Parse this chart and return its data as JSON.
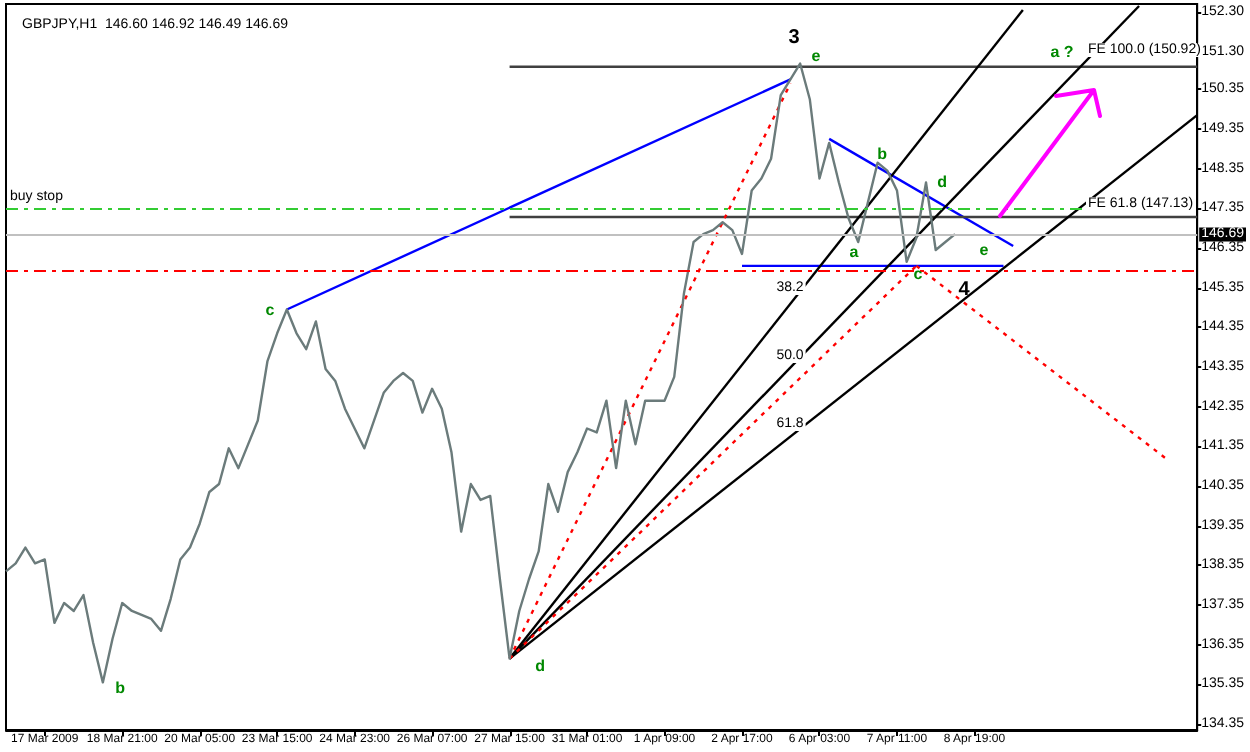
{
  "chart_data": {
    "type": "line",
    "title": "GBPJPY,H1  146.60 146.92 146.49 146.69",
    "marker": "none",
    "categories": [
      null,
      null,
      null,
      null,
      "17 Mar 2009",
      null,
      null,
      null,
      null,
      null,
      null,
      null,
      "18 Mar 21:00",
      null,
      null,
      null,
      null,
      null,
      null,
      null,
      "20 Mar 05:00",
      null,
      null,
      null,
      null,
      null,
      null,
      null,
      "23 Mar 15:00",
      null,
      null,
      null,
      null,
      null,
      null,
      null,
      "24 Mar 23:00",
      null,
      null,
      null,
      null,
      null,
      null,
      null,
      "26 Mar 07:00",
      null,
      null,
      null,
      null,
      null,
      null,
      null,
      "27 Mar 15:00",
      null,
      null,
      null,
      null,
      null,
      null,
      null,
      "31 Mar 01:00",
      null,
      null,
      null,
      null,
      null,
      null,
      null,
      "1 Apr 09:00",
      null,
      null,
      null,
      null,
      null,
      null,
      null,
      "2 Apr 17:00",
      null,
      null,
      null,
      null,
      null,
      null,
      null,
      "6 Apr 03:00",
      null,
      null,
      null,
      null,
      null,
      null,
      null,
      "7 Apr 11:00",
      null,
      null,
      null,
      null,
      null,
      null,
      null,
      "8 Apr 19:00",
      null,
      null,
      null,
      null,
      null,
      null,
      null,
      null,
      null,
      null,
      null,
      null,
      null,
      null,
      null,
      null,
      null,
      null,
      null,
      null,
      null,
      null,
      null
    ],
    "series": [
      {
        "color": "#6b7b7b",
        "values": [
          138.2,
          138.4,
          138.8,
          138.4,
          138.5,
          136.9,
          137.4,
          137.2,
          137.6,
          136.4,
          135.4,
          136.5,
          137.4,
          137.2,
          137.1,
          137.0,
          136.7,
          137.5,
          138.5,
          138.8,
          139.4,
          140.2,
          140.4,
          141.3,
          140.8,
          141.4,
          142.0,
          143.5,
          144.2,
          144.8,
          144.2,
          143.8,
          144.5,
          143.3,
          143.0,
          142.3,
          141.8,
          141.3,
          142.0,
          142.7,
          143.0,
          143.2,
          143.0,
          142.2,
          142.8,
          142.3,
          141.2,
          139.2,
          140.4,
          140.0,
          140.1,
          138.0,
          136.0,
          137.2,
          138.0,
          138.7,
          140.4,
          139.7,
          140.7,
          141.2,
          141.8,
          141.7,
          142.5,
          140.8,
          142.5,
          141.4,
          142.5,
          142.5,
          142.5,
          143.1,
          145.2,
          146.5,
          146.7,
          146.8,
          147.0,
          146.8,
          146.2,
          147.8,
          148.1,
          148.6,
          150.2,
          150.6,
          151.0,
          150.1,
          148.1,
          149.0,
          148.0,
          147.1,
          146.5,
          147.5,
          148.5,
          148.3,
          147.8,
          146.0,
          146.6,
          148.0,
          146.3,
          146.5,
          146.7,
          null,
          null,
          null,
          null,
          null,
          null,
          null,
          null,
          null,
          null,
          null,
          null,
          null,
          null,
          null,
          null,
          null,
          null,
          null,
          null,
          null,
          null,
          null,
          null,
          null
        ]
      },
      {
        "color": "#0000ff",
        "values": [
          null,
          null,
          null,
          null,
          null,
          null,
          null,
          null,
          null,
          null,
          null,
          null,
          null,
          null,
          null,
          null,
          null,
          null,
          null,
          null,
          null,
          null,
          null,
          null,
          null,
          null,
          null,
          null,
          null,
          144.8,
          null,
          null,
          null,
          null,
          null,
          null,
          null,
          null,
          null,
          null,
          null,
          null,
          null,
          null,
          null,
          null,
          null,
          null,
          null,
          null,
          null,
          null,
          null,
          null,
          null,
          null,
          null,
          null,
          null,
          null,
          null,
          null,
          null,
          null,
          null,
          null,
          null,
          null,
          null,
          null,
          null,
          null,
          null,
          null,
          null,
          null,
          null,
          null,
          null,
          null,
          null,
          150.6,
          null,
          null,
          null,
          null,
          null,
          null,
          null,
          null,
          null,
          null,
          null,
          null,
          null,
          null,
          null,
          null,
          null,
          null,
          null,
          null,
          null,
          null,
          null,
          null,
          null,
          null,
          null,
          null,
          null,
          null,
          null,
          null,
          null,
          null,
          null,
          null,
          null,
          null,
          null,
          null,
          null,
          null
        ]
      },
      {
        "color": "#0000ff",
        "values": [
          null,
          null,
          null,
          null,
          null,
          null,
          null,
          null,
          null,
          null,
          null,
          null,
          null,
          null,
          null,
          null,
          null,
          null,
          null,
          null,
          null,
          null,
          null,
          null,
          null,
          null,
          null,
          null,
          null,
          null,
          null,
          null,
          null,
          null,
          null,
          null,
          null,
          null,
          null,
          null,
          null,
          null,
          null,
          null,
          null,
          null,
          null,
          null,
          null,
          null,
          null,
          null,
          null,
          null,
          null,
          null,
          null,
          null,
          null,
          null,
          null,
          null,
          null,
          null,
          null,
          null,
          null,
          null,
          null,
          null,
          null,
          null,
          null,
          null,
          null,
          null,
          null,
          null,
          null,
          null,
          null,
          null,
          null,
          null,
          null,
          149.1,
          null,
          null,
          null,
          null,
          null,
          null,
          null,
          null,
          null,
          null,
          null,
          null,
          null,
          null,
          null,
          null,
          null,
          null,
          146.4,
          null,
          null,
          null,
          null,
          null,
          null,
          null,
          null,
          null,
          null,
          null,
          null,
          null,
          null,
          null,
          null,
          null,
          null,
          null
        ]
      },
      {
        "color": "#0000ff",
        "values": [
          null,
          null,
          null,
          null,
          null,
          null,
          null,
          null,
          null,
          null,
          null,
          null,
          null,
          null,
          null,
          null,
          null,
          null,
          null,
          null,
          null,
          null,
          null,
          null,
          null,
          null,
          null,
          null,
          null,
          null,
          null,
          null,
          null,
          null,
          null,
          null,
          null,
          null,
          null,
          null,
          null,
          null,
          null,
          null,
          null,
          null,
          null,
          null,
          null,
          null,
          null,
          null,
          null,
          null,
          null,
          null,
          null,
          null,
          null,
          null,
          null,
          null,
          null,
          null,
          null,
          null,
          null,
          null,
          null,
          null,
          null,
          null,
          null,
          null,
          null,
          null,
          145.9,
          null,
          null,
          null,
          null,
          null,
          null,
          null,
          null,
          null,
          null,
          null,
          null,
          null,
          null,
          null,
          null,
          null,
          null,
          null,
          null,
          null,
          null,
          null,
          null,
          null,
          null,
          145.9,
          null,
          null,
          null,
          null,
          null,
          null,
          null,
          null,
          null,
          null,
          null,
          null,
          null,
          null,
          null,
          null,
          null,
          null,
          null,
          null
        ]
      },
      {
        "color": "#404040",
        "values": [
          null,
          null,
          null,
          null,
          null,
          null,
          null,
          null,
          null,
          null,
          null,
          null,
          null,
          null,
          null,
          null,
          null,
          null,
          null,
          null,
          null,
          null,
          null,
          null,
          null,
          null,
          null,
          null,
          null,
          null,
          null,
          null,
          null,
          null,
          null,
          null,
          null,
          null,
          null,
          null,
          null,
          null,
          null,
          null,
          null,
          null,
          null,
          null,
          null,
          null,
          null,
          null,
          150.92,
          null,
          null,
          null,
          null,
          null,
          null,
          null,
          null,
          null,
          null,
          null,
          null,
          null,
          null,
          null,
          null,
          null,
          null,
          null,
          null,
          null,
          null,
          null,
          null,
          null,
          null,
          null,
          null,
          null,
          null,
          null,
          null,
          null,
          null,
          null,
          null,
          null,
          null,
          null,
          null,
          null,
          null,
          null,
          null,
          null,
          null,
          null,
          null,
          null,
          null,
          null,
          null,
          null,
          null,
          null,
          null,
          null,
          null,
          null,
          null,
          null,
          null,
          null,
          null,
          null,
          null,
          null,
          null,
          null,
          null,
          150.92
        ]
      },
      {
        "color": "#404040",
        "values": [
          null,
          null,
          null,
          null,
          null,
          null,
          null,
          null,
          null,
          null,
          null,
          null,
          null,
          null,
          null,
          null,
          null,
          null,
          null,
          null,
          null,
          null,
          null,
          null,
          null,
          null,
          null,
          null,
          null,
          null,
          null,
          null,
          null,
          null,
          null,
          null,
          null,
          null,
          null,
          null,
          null,
          null,
          null,
          null,
          null,
          null,
          null,
          null,
          null,
          null,
          null,
          null,
          147.13,
          null,
          null,
          null,
          null,
          null,
          null,
          null,
          null,
          null,
          null,
          null,
          null,
          null,
          null,
          null,
          null,
          null,
          null,
          null,
          null,
          null,
          null,
          null,
          null,
          null,
          null,
          null,
          null,
          null,
          null,
          null,
          null,
          null,
          null,
          null,
          null,
          null,
          null,
          null,
          null,
          null,
          null,
          null,
          null,
          null,
          null,
          null,
          null,
          null,
          null,
          null,
          null,
          null,
          null,
          null,
          null,
          null,
          null,
          null,
          null,
          null,
          null,
          null,
          null,
          null,
          null,
          null,
          null,
          null,
          null,
          147.13
        ]
      },
      {
        "color": "#000000",
        "values": [
          null,
          null,
          null,
          null,
          null,
          null,
          null,
          null,
          null,
          null,
          null,
          null,
          null,
          null,
          null,
          null,
          null,
          null,
          null,
          null,
          null,
          null,
          null,
          null,
          null,
          null,
          null,
          null,
          null,
          null,
          null,
          null,
          null,
          null,
          null,
          null,
          null,
          null,
          null,
          null,
          null,
          null,
          null,
          null,
          null,
          null,
          null,
          null,
          null,
          null,
          null,
          null,
          136.0,
          null,
          null,
          null,
          null,
          null,
          null,
          null,
          null,
          null,
          null,
          null,
          null,
          null,
          null,
          null,
          null,
          null,
          null,
          null,
          null,
          null,
          null,
          null,
          null,
          null,
          null,
          null,
          null,
          null,
          null,
          null,
          null,
          null,
          null,
          null,
          null,
          null,
          null,
          null,
          null,
          null,
          null,
          null,
          null,
          null,
          null,
          null,
          null,
          null,
          null,
          null,
          null,
          152.35,
          null,
          null,
          null,
          null,
          null,
          null,
          null,
          null,
          null,
          null,
          null,
          null,
          null,
          null,
          null,
          null,
          null,
          null
        ]
      },
      {
        "color": "#000000",
        "values": [
          null,
          null,
          null,
          null,
          null,
          null,
          null,
          null,
          null,
          null,
          null,
          null,
          null,
          null,
          null,
          null,
          null,
          null,
          null,
          null,
          null,
          null,
          null,
          null,
          null,
          null,
          null,
          null,
          null,
          null,
          null,
          null,
          null,
          null,
          null,
          null,
          null,
          null,
          null,
          null,
          null,
          null,
          null,
          null,
          null,
          null,
          null,
          null,
          null,
          null,
          null,
          null,
          136.0,
          null,
          null,
          null,
          null,
          null,
          null,
          null,
          null,
          null,
          null,
          null,
          null,
          null,
          null,
          null,
          null,
          null,
          null,
          null,
          null,
          null,
          null,
          null,
          null,
          null,
          null,
          null,
          null,
          null,
          null,
          null,
          null,
          null,
          null,
          null,
          null,
          null,
          null,
          null,
          null,
          null,
          null,
          null,
          null,
          null,
          null,
          null,
          null,
          null,
          null,
          null,
          null,
          null,
          null,
          null,
          null,
          null,
          null,
          null,
          null,
          null,
          null,
          null,
          null,
          152.45,
          null,
          null,
          null,
          null,
          null,
          null
        ]
      },
      {
        "color": "#000000",
        "values": [
          null,
          null,
          null,
          null,
          null,
          null,
          null,
          null,
          null,
          null,
          null,
          null,
          null,
          null,
          null,
          null,
          null,
          null,
          null,
          null,
          null,
          null,
          null,
          null,
          null,
          null,
          null,
          null,
          null,
          null,
          null,
          null,
          null,
          null,
          null,
          null,
          null,
          null,
          null,
          null,
          null,
          null,
          null,
          null,
          null,
          null,
          null,
          null,
          null,
          null,
          null,
          null,
          136.0,
          null,
          null,
          null,
          null,
          null,
          null,
          null,
          null,
          null,
          null,
          null,
          null,
          null,
          null,
          null,
          null,
          null,
          null,
          null,
          null,
          null,
          null,
          null,
          null,
          null,
          null,
          null,
          null,
          null,
          null,
          null,
          null,
          null,
          null,
          null,
          null,
          null,
          null,
          null,
          null,
          null,
          null,
          null,
          null,
          null,
          null,
          null,
          null,
          null,
          null,
          null,
          null,
          null,
          null,
          null,
          null,
          null,
          null,
          null,
          null,
          null,
          null,
          null,
          null,
          null,
          null,
          null,
          null,
          null,
          null,
          149.7
        ]
      },
      {
        "color": "#ff0000",
        "line_style": "dotted",
        "values": [
          null,
          null,
          null,
          null,
          null,
          null,
          null,
          null,
          null,
          null,
          null,
          null,
          null,
          null,
          null,
          null,
          null,
          null,
          null,
          null,
          null,
          null,
          null,
          null,
          null,
          null,
          null,
          null,
          null,
          null,
          null,
          null,
          null,
          null,
          null,
          null,
          null,
          null,
          null,
          null,
          null,
          null,
          null,
          null,
          null,
          null,
          null,
          null,
          null,
          null,
          null,
          null,
          136.0,
          null,
          null,
          null,
          null,
          null,
          null,
          null,
          null,
          null,
          null,
          null,
          null,
          null,
          null,
          null,
          null,
          null,
          null,
          null,
          null,
          null,
          null,
          null,
          null,
          null,
          null,
          null,
          null,
          150.5,
          null,
          null,
          null,
          null,
          null,
          null,
          null,
          null,
          null,
          null,
          null,
          null,
          null,
          null,
          null,
          null,
          null,
          null,
          null,
          null,
          null,
          null,
          null,
          null,
          null,
          null,
          null,
          null,
          null,
          null,
          null,
          null,
          null,
          null,
          null,
          null,
          null,
          null,
          null,
          null,
          null,
          null
        ]
      },
      {
        "color": "#ff0000",
        "line_style": "dotted",
        "values": [
          null,
          null,
          null,
          null,
          null,
          null,
          null,
          null,
          null,
          null,
          null,
          null,
          null,
          null,
          null,
          null,
          null,
          null,
          null,
          null,
          null,
          null,
          null,
          null,
          null,
          null,
          null,
          null,
          null,
          null,
          null,
          null,
          null,
          null,
          null,
          null,
          null,
          null,
          null,
          null,
          null,
          null,
          null,
          null,
          null,
          null,
          null,
          null,
          null,
          null,
          null,
          null,
          136.0,
          null,
          null,
          null,
          null,
          null,
          null,
          null,
          null,
          null,
          null,
          null,
          null,
          null,
          null,
          null,
          null,
          null,
          null,
          null,
          null,
          null,
          null,
          null,
          null,
          null,
          null,
          null,
          null,
          null,
          null,
          null,
          null,
          null,
          null,
          null,
          null,
          null,
          null,
          null,
          null,
          null,
          145.9,
          null,
          null,
          null,
          null,
          null,
          null,
          null,
          null,
          null,
          null,
          null,
          null,
          null,
          null,
          null,
          null,
          null,
          null,
          null,
          null,
          null,
          null,
          null,
          null,
          null,
          null,
          null,
          null,
          null
        ]
      },
      {
        "color": "#ff0000",
        "line_style": "dotted",
        "values": [
          null,
          null,
          null,
          null,
          null,
          null,
          null,
          null,
          null,
          null,
          null,
          null,
          null,
          null,
          null,
          null,
          null,
          null,
          null,
          null,
          null,
          null,
          null,
          null,
          null,
          null,
          null,
          null,
          null,
          null,
          null,
          null,
          null,
          null,
          null,
          null,
          null,
          null,
          null,
          null,
          null,
          null,
          null,
          null,
          null,
          null,
          null,
          null,
          null,
          null,
          null,
          null,
          null,
          null,
          null,
          null,
          null,
          null,
          null,
          null,
          null,
          null,
          null,
          null,
          null,
          null,
          null,
          null,
          null,
          null,
          null,
          null,
          null,
          null,
          null,
          null,
          null,
          null,
          null,
          null,
          null,
          null,
          null,
          null,
          null,
          null,
          null,
          null,
          null,
          null,
          null,
          null,
          null,
          null,
          145.9,
          null,
          null,
          null,
          null,
          null,
          null,
          null,
          null,
          null,
          null,
          null,
          null,
          null,
          null,
          null,
          null,
          null,
          null,
          null,
          null,
          null,
          null,
          null,
          null,
          null,
          141.0,
          null,
          null,
          null
        ]
      }
    ],
    "ylim": [
      134.2,
      152.5
    ],
    "yticks": [
      134.35,
      135.35,
      136.35,
      137.35,
      138.35,
      139.35,
      140.35,
      141.35,
      142.35,
      143.35,
      144.35,
      145.35,
      146.35,
      147.35,
      148.35,
      149.35,
      150.35,
      {
        "value": 151.3,
        "label": "151.30"
      },
      {
        "value": 152.3,
        "label": "152.30"
      }
    ],
    "ref_lines": [
      {
        "axis": "y",
        "value": 147.35,
        "label": "buy stop",
        "color": "#33cc33",
        "line_style": "dashed"
      },
      {
        "axis": "y",
        "value": 146.69,
        "label": "146.69",
        "color": "#c0c0c0"
      },
      {
        "axis": "y",
        "value": 145.8,
        "color": "#ff0000",
        "line_style": "dashed"
      }
    ],
    "annotations": [
      "3",
      "e",
      "a ?",
      "FE 100.0 (150.92)",
      "b",
      "d",
      "FE 61.8 (147.13)",
      "a",
      "c",
      "e",
      "4",
      "38.2",
      "50.0",
      "61.8",
      "c",
      "b",
      "d"
    ]
  }
}
